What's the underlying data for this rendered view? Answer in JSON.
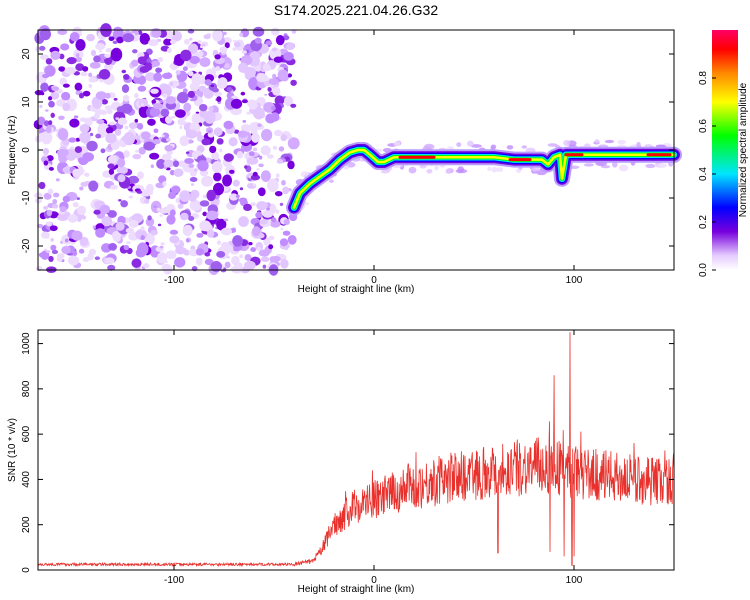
{
  "title": "S174.2025.221.04.26.G32",
  "chart_data": [
    {
      "type": "heatmap",
      "name": "spectrogram",
      "xlabel": "Height of straight line (km)",
      "ylabel": "Frequency (Hz)",
      "xlim": [
        -168,
        150
      ],
      "ylim": [
        -25,
        25
      ],
      "xticks": [
        -100,
        0,
        100
      ],
      "yticks": [
        -20,
        -10,
        0,
        10,
        20
      ],
      "noise_region_x": [
        -168,
        -40
      ],
      "signal_ridge": [
        {
          "x": -40,
          "y": -12
        },
        {
          "x": -37,
          "y": -9
        },
        {
          "x": -32,
          "y": -7
        },
        {
          "x": -27,
          "y": -5.5
        },
        {
          "x": -22,
          "y": -4
        },
        {
          "x": -17,
          "y": -2
        },
        {
          "x": -12,
          "y": -0.5
        },
        {
          "x": -8,
          "y": 0
        },
        {
          "x": -5,
          "y": 0
        },
        {
          "x": -2,
          "y": -1
        },
        {
          "x": 2,
          "y": -2.5
        },
        {
          "x": 5,
          "y": -2.5
        },
        {
          "x": 10,
          "y": -1.5
        },
        {
          "x": 20,
          "y": -1.5
        },
        {
          "x": 40,
          "y": -1.5
        },
        {
          "x": 60,
          "y": -1.5
        },
        {
          "x": 70,
          "y": -2
        },
        {
          "x": 80,
          "y": -2
        },
        {
          "x": 84,
          "y": -2
        },
        {
          "x": 87,
          "y": -3
        },
        {
          "x": 90,
          "y": -1.5
        },
        {
          "x": 93,
          "y": -1
        },
        {
          "x": 94,
          "y": -6
        },
        {
          "x": 96,
          "y": -1
        },
        {
          "x": 100,
          "y": -1
        },
        {
          "x": 120,
          "y": -1
        },
        {
          "x": 150,
          "y": -1
        }
      ],
      "peak_segments": [
        {
          "x_start": 13,
          "x_end": 30,
          "y": -1.5
        },
        {
          "x_start": 68,
          "x_end": 78,
          "y": -2
        },
        {
          "x_start": 96,
          "x_end": 104,
          "y": -1
        },
        {
          "x_start": 137,
          "x_end": 148,
          "y": -1
        }
      ],
      "colorbar": {
        "label": "Normalized spectral amplitude",
        "range": [
          0,
          1
        ],
        "ticks": [
          "0.0",
          "0.2",
          "0.4",
          "0.6",
          "0.8"
        ],
        "tick_values": [
          0,
          0.2,
          0.4,
          0.6,
          0.8
        ],
        "colors": [
          "#ffffff",
          "#e6ccff",
          "#7700dd",
          "#0000ff",
          "#00e5ff",
          "#00ff00",
          "#ffff00",
          "#ff8800",
          "#ff0000",
          "#ff0066"
        ]
      }
    },
    {
      "type": "line",
      "name": "snr",
      "xlabel": "Height of straight line (km)",
      "ylabel": "SNR (10 * v/v)",
      "xlim": [
        -168,
        150
      ],
      "ylim": [
        0,
        1060
      ],
      "xticks": [
        -100,
        0,
        100
      ],
      "yticks": [
        0,
        200,
        400,
        600,
        800,
        1000
      ],
      "line_color": "#e8312c",
      "envelope": [
        {
          "x": -168,
          "y": 25
        },
        {
          "x": -40,
          "y": 25
        },
        {
          "x": -30,
          "y": 40
        },
        {
          "x": -25,
          "y": 110
        },
        {
          "x": -20,
          "y": 200
        },
        {
          "x": -10,
          "y": 280
        },
        {
          "x": 0,
          "y": 310
        },
        {
          "x": 10,
          "y": 340
        },
        {
          "x": 20,
          "y": 370
        },
        {
          "x": 30,
          "y": 390
        },
        {
          "x": 40,
          "y": 410
        },
        {
          "x": 60,
          "y": 440
        },
        {
          "x": 80,
          "y": 460
        },
        {
          "x": 90,
          "y": 460
        },
        {
          "x": 100,
          "y": 430
        },
        {
          "x": 110,
          "y": 420
        },
        {
          "x": 130,
          "y": 400
        },
        {
          "x": 150,
          "y": 390
        }
      ],
      "spikes": [
        {
          "x": 62,
          "y": 75
        },
        {
          "x": 88,
          "y": 80
        },
        {
          "x": 90,
          "y": 860
        },
        {
          "x": 95,
          "y": 60
        },
        {
          "x": 98,
          "y": 1050
        },
        {
          "x": 99,
          "y": 20
        },
        {
          "x": 100,
          "y": 60
        }
      ]
    }
  ]
}
